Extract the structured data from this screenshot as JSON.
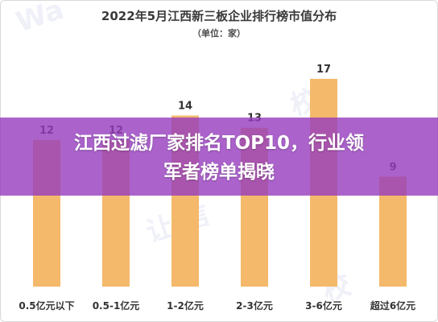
{
  "chart_data": {
    "type": "bar",
    "title": "2022年5月江西新三板企业排行榜市值分布",
    "subtitle": "（单位：家）",
    "categories": [
      "0.5亿元以下",
      "0.5-1亿元",
      "1-2亿元",
      "2-3亿元",
      "3-6亿元",
      "超过6亿元"
    ],
    "values": [
      12,
      12,
      14,
      13,
      17,
      9
    ],
    "ylim": [
      0,
      19.5
    ],
    "grid": false,
    "legend": "none",
    "bar_color": "#f4b96b"
  },
  "overlay": {
    "headline_line1": "江西过滤厂家排名TOP10，行业领",
    "headline_line2": "军者榜单揭晓"
  },
  "colors": {
    "overlay": "#963cbe",
    "text": "#333333"
  }
}
